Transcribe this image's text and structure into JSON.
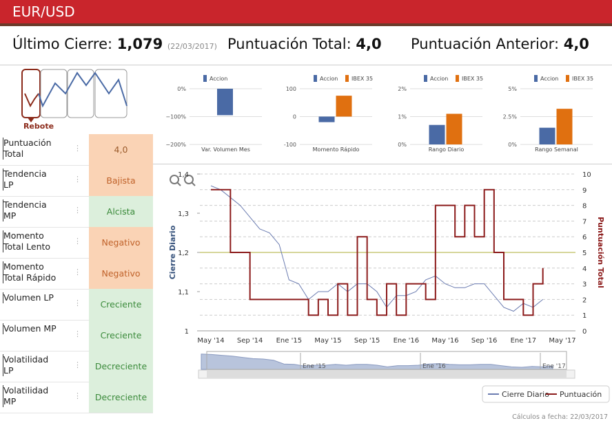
{
  "header": {
    "title": "EUR/USD"
  },
  "stats": {
    "last_close": {
      "label": "Último Cierre:",
      "value": "1,079",
      "date": "(22/03/2017)"
    },
    "total": {
      "label": "Puntuación Total:",
      "value": "4,0"
    },
    "previous": {
      "label": "Puntuación Anterior:",
      "value": "4,0"
    }
  },
  "pattern": {
    "label": "Rebote"
  },
  "table": {
    "rows": [
      {
        "label": "Puntuación Total",
        "value": "4,0",
        "color": "#fad3b5",
        "text_color": "#9a5a2a"
      },
      {
        "label": "Tendencia LP",
        "value": "Bajista",
        "color": "#fad3b5",
        "text_color": "#c0622a"
      },
      {
        "label": "Tendencia MP",
        "value": "Alcista",
        "color": "#dcefdc",
        "text_color": "#3a8a3a"
      },
      {
        "label": "Momento Total Lento",
        "value": "Negativo",
        "color": "#fad3b5",
        "text_color": "#c0622a"
      },
      {
        "label": "Momento Total Rápido",
        "value": "Negativo",
        "color": "#fad3b5",
        "text_color": "#c0622a"
      },
      {
        "label": "Volumen LP",
        "value": "Creciente",
        "color": "#dcefdc",
        "text_color": "#3a8a3a"
      },
      {
        "label": "Volumen MP",
        "value": "Creciente",
        "color": "#dcefdc",
        "text_color": "#3a8a3a"
      },
      {
        "label": "Volatilidad LP",
        "value": "Decreciente",
        "color": "#dcefdc",
        "text_color": "#3a8a3a"
      },
      {
        "label": "Volatilidad MP",
        "value": "Decreciente",
        "color": "#dcefdc",
        "text_color": "#3a8a3a"
      }
    ]
  },
  "chart_data": [
    {
      "type": "bar",
      "title": "Var. Volumen Mes",
      "categories": [
        null
      ],
      "series": [
        {
          "name": "Accion",
          "color": "#4a6aa5",
          "values": [
            -95
          ]
        }
      ],
      "ylim": [
        -200,
        0
      ],
      "yticks": [
        {
          "value": 0,
          "label": "0%"
        },
        {
          "value": -100,
          "label": "−100%"
        },
        {
          "value": -200,
          "label": "−200%"
        }
      ]
    },
    {
      "type": "bar",
      "title": "Momento Rápido",
      "categories": [
        null
      ],
      "series": [
        {
          "name": "Accion",
          "color": "#4a6aa5",
          "values": [
            -20
          ]
        },
        {
          "name": "IBEX 35",
          "color": "#e07010",
          "values": [
            75
          ]
        }
      ],
      "ylim": [
        -100,
        100
      ],
      "yticks": [
        100,
        0,
        -100
      ]
    },
    {
      "type": "bar",
      "title": "Rango Diario",
      "categories": [
        null
      ],
      "series": [
        {
          "name": "Accion",
          "color": "#4a6aa5",
          "values": [
            0.7
          ]
        },
        {
          "name": "IBEX 35",
          "color": "#e07010",
          "values": [
            1.1
          ]
        }
      ],
      "ylim": [
        0,
        2
      ],
      "yticks": [
        {
          "value": 2,
          "label": "2%"
        },
        {
          "value": 1,
          "label": "1%"
        },
        {
          "value": 0,
          "label": "0%"
        }
      ]
    },
    {
      "type": "bar",
      "title": "Rango Semanal",
      "categories": [
        null
      ],
      "series": [
        {
          "name": "Accion",
          "color": "#4a6aa5",
          "values": [
            1.5
          ]
        },
        {
          "name": "IBEX 35",
          "color": "#e07010",
          "values": [
            3.2
          ]
        }
      ],
      "ylim": [
        0,
        5
      ],
      "yticks": [
        {
          "value": 5,
          "label": "5%"
        },
        {
          "value": 2.5,
          "label": "2.5%"
        },
        {
          "value": 0,
          "label": "0%"
        }
      ]
    },
    {
      "type": "line",
      "y_label": "Cierre Diario",
      "y2_label": "Puntuación Total",
      "categories": [
        "May '14",
        null,
        null,
        null,
        "Sep '14",
        null,
        null,
        null,
        "Ene '15",
        null,
        null,
        null,
        "May '15",
        null,
        null,
        null,
        "Sep '15",
        null,
        null,
        null,
        "Ene '16",
        null,
        null,
        null,
        "May '16",
        null,
        null,
        null,
        "Sep '16",
        null,
        null,
        null,
        "Ene '17",
        null,
        null,
        null,
        "May '17"
      ],
      "series": [
        {
          "name": "Cierre Diario",
          "color": "#6a7bb0",
          "values": [
            1.37,
            1.36,
            1.34,
            1.32,
            1.29,
            1.26,
            1.25,
            1.22,
            1.13,
            1.12,
            1.08,
            1.1,
            1.1,
            1.12,
            1.1,
            1.12,
            1.12,
            1.1,
            1.06,
            1.09,
            1.09,
            1.1,
            1.13,
            1.14,
            1.12,
            1.11,
            1.11,
            1.12,
            1.12,
            1.09,
            1.06,
            1.05,
            1.07,
            1.06,
            1.08,
            null,
            null
          ]
        },
        {
          "name": "Puntuación",
          "color": "#8b1a1a",
          "axis": "y2",
          "values": [
            9,
            9,
            5,
            5,
            2,
            2,
            2,
            2,
            2,
            2,
            1,
            2,
            1,
            3,
            1,
            6,
            2,
            1,
            3,
            1,
            3,
            3,
            2,
            8,
            8,
            6,
            8,
            6,
            9,
            5,
            2,
            2,
            1,
            3,
            4,
            null,
            null
          ]
        }
      ],
      "ylim": [
        1,
        1.4
      ],
      "yticks": [
        1,
        {
          "value": 1.1,
          "label": "1,1"
        },
        {
          "value": 1.2,
          "label": "1,2"
        },
        {
          "value": 1.3,
          "label": "1,3"
        },
        {
          "value": 1.4,
          "label": "1,4"
        }
      ],
      "y2lim": [
        0,
        10
      ],
      "y2ticks": [
        0,
        1,
        2,
        3,
        4,
        5,
        6,
        7,
        8,
        9,
        10
      ],
      "reference_line": {
        "value": 1.2,
        "color": "#c8c878"
      },
      "navigator_labels": [
        "Ene '15",
        "Ene '16",
        "Ene '17"
      ],
      "grid": true,
      "legend": "bottom-right"
    }
  ],
  "footer": {
    "text": "Cálculos a fecha: 22/03/2017"
  }
}
